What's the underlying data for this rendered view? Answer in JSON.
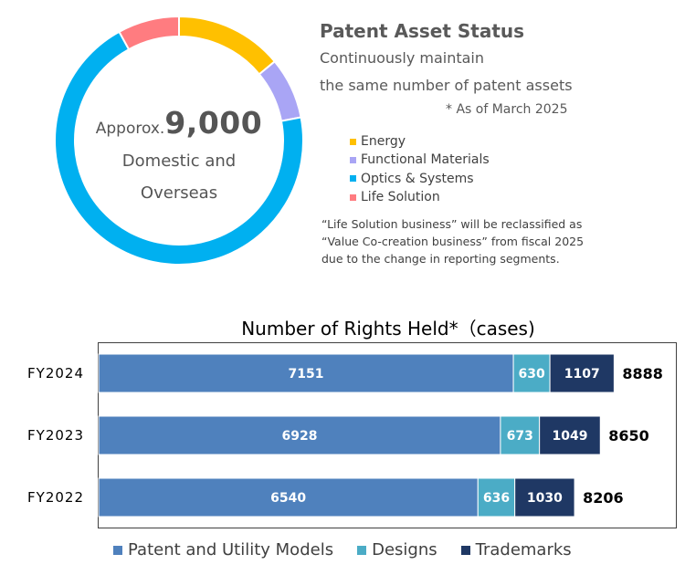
{
  "donut": {
    "title": "Patent Asset Status",
    "subtitle_line1": "Continuously maintain",
    "subtitle_line2": "the same number of patent assets",
    "as_of": "* As of March 2025",
    "center_prefix": "Apporox.",
    "center_value": "9,000",
    "center_line2": "Domestic and",
    "center_line3": "Overseas",
    "legend": [
      {
        "label": "Energy",
        "color": "#FFC000"
      },
      {
        "label": "Functional Materials",
        "color": "#A9A5F5"
      },
      {
        "label": "Optics & Systems",
        "color": "#00B0F0"
      },
      {
        "label": "Life Solution",
        "color": "#FF7C80"
      }
    ],
    "note_line1": "“Life Solution business” will be reclassified as",
    "note_line2": "“Value Co-creation business” from fiscal 2025",
    "note_line3": "due to the change in reporting segments."
  },
  "chart_data": [
    {
      "type": "pie",
      "categories": [
        "Energy",
        "Functional Materials",
        "Optics & Systems",
        "Life Solution"
      ],
      "values": [
        14,
        8,
        70,
        8
      ],
      "colors": [
        "#FFC000",
        "#A9A5F5",
        "#00B0F0",
        "#FF7C80"
      ]
    },
    {
      "type": "bar",
      "orientation": "horizontal",
      "stacked": true,
      "title": "Number of Rights Held*（cases)",
      "categories": [
        "FY2024",
        "FY2023",
        "FY2022"
      ],
      "series": [
        {
          "name": "Patent and Utility Models",
          "values": [
            7151,
            6928,
            6540
          ],
          "color": "#4F81BD"
        },
        {
          "name": "Designs",
          "values": [
            630,
            673,
            636
          ],
          "color": "#4BACC6"
        },
        {
          "name": "Trademarks",
          "values": [
            1107,
            1049,
            1030
          ],
          "color": "#1F3864"
        }
      ],
      "totals": [
        8888,
        8650,
        8206
      ],
      "xlim": [
        0,
        10000
      ]
    }
  ]
}
